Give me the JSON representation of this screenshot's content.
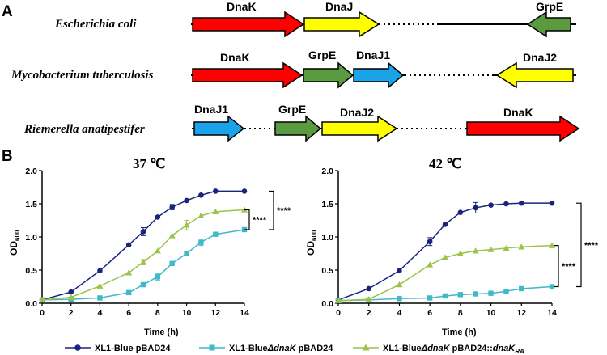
{
  "panel_a": {
    "label": "A",
    "rows": [
      {
        "organism": "Escherichia coli",
        "genes": [
          {
            "name": "DnaK",
            "color": "#ff0000"
          },
          {
            "name": "DnaJ",
            "color": "#ffff00"
          },
          {
            "name": "GrpE",
            "color": "#5b9b3f"
          }
        ]
      },
      {
        "organism": "Mycobacterium tuberculosis",
        "genes": [
          {
            "name": "DnaK",
            "color": "#ff0000"
          },
          {
            "name": "GrpE",
            "color": "#5b9b3f"
          },
          {
            "name": "DnaJ1",
            "color": "#1aa3e8"
          },
          {
            "name": "DnaJ2",
            "color": "#ffff00"
          }
        ]
      },
      {
        "organism": "Riemerella anatipestifer",
        "genes": [
          {
            "name": "DnaJ1",
            "color": "#1aa3e8"
          },
          {
            "name": "GrpE",
            "color": "#5b9b3f"
          },
          {
            "name": "DnaJ2",
            "color": "#ffff00"
          },
          {
            "name": "DnaK",
            "color": "#ff0000"
          }
        ]
      }
    ]
  },
  "panel_b": {
    "label": "B",
    "ylabel_main": "OD",
    "ylabel_sub": "600"
  },
  "chart_data": [
    {
      "type": "line",
      "title": "37 ℃",
      "xlabel": "Time (h)",
      "ylabel": "OD600",
      "xlim": [
        0,
        14
      ],
      "ylim": [
        0,
        2.0
      ],
      "xticks": [
        0,
        2,
        4,
        6,
        8,
        10,
        12,
        14
      ],
      "yticks": [
        0.0,
        0.5,
        1.0,
        1.5,
        2.0
      ],
      "ytick_labels": [
        "0.0",
        "0.5",
        "1.0",
        "1.5",
        "2.0"
      ],
      "x": [
        0,
        2,
        4,
        6,
        7,
        8,
        9,
        10,
        11,
        12,
        14
      ],
      "series": [
        {
          "name": "XL1-Blue pBAD24",
          "color": "#1a237e",
          "marker": "circle",
          "values": [
            0.05,
            0.17,
            0.49,
            0.88,
            1.08,
            1.3,
            1.45,
            1.55,
            1.63,
            1.69,
            1.69
          ],
          "errors": [
            0,
            0,
            0,
            0,
            0.06,
            0,
            0.04,
            0,
            0,
            0,
            0
          ]
        },
        {
          "name": "XL1-BlueΔdnaK pBAD24",
          "color": "#3fb8c8",
          "marker": "square",
          "values": [
            0.05,
            0.06,
            0.08,
            0.16,
            0.28,
            0.4,
            0.6,
            0.75,
            0.92,
            1.04,
            1.11
          ],
          "errors": [
            0,
            0,
            0,
            0,
            0,
            0.05,
            0,
            0,
            0.05,
            0,
            0
          ]
        },
        {
          "name": "XL1-BlueΔdnaK pBAD24::dnaKRA",
          "color": "#9cc24a",
          "marker": "triangle",
          "values": [
            0.05,
            0.09,
            0.26,
            0.46,
            0.62,
            0.79,
            1.02,
            1.18,
            1.32,
            1.38,
            1.41
          ],
          "errors": [
            0,
            0,
            0,
            0,
            0.04,
            0,
            0,
            0.07,
            0,
            0,
            0
          ]
        }
      ],
      "significance": [
        {
          "label": "****",
          "between": [
            "XL1-BlueΔdnaK pBAD24::dnaKRA",
            "XL1-BlueΔdnaK pBAD24"
          ]
        },
        {
          "label": "****",
          "between": [
            "XL1-Blue pBAD24",
            "XL1-BlueΔdnaK pBAD24"
          ]
        }
      ]
    },
    {
      "type": "line",
      "title": "42 ℃",
      "xlabel": "Time (h)",
      "ylabel": "OD600",
      "xlim": [
        0,
        14
      ],
      "ylim": [
        0,
        2.0
      ],
      "xticks": [
        0,
        2,
        4,
        6,
        8,
        10,
        12,
        14
      ],
      "yticks": [
        0.0,
        0.5,
        1.0,
        1.5,
        2.0
      ],
      "ytick_labels": [
        "0.0",
        "0.5",
        "1.0",
        "1.5",
        "2.0"
      ],
      "x": [
        0,
        2,
        4,
        6,
        7,
        8,
        9,
        10,
        11,
        12,
        14
      ],
      "series": [
        {
          "name": "XL1-Blue pBAD24",
          "color": "#1a237e",
          "marker": "circle",
          "values": [
            0.05,
            0.22,
            0.49,
            0.93,
            1.19,
            1.37,
            1.44,
            1.48,
            1.5,
            1.51,
            1.51
          ],
          "errors": [
            0,
            0,
            0,
            0.06,
            0,
            0,
            0.08,
            0,
            0,
            0,
            0
          ]
        },
        {
          "name": "XL1-BlueΔdnaK pBAD24",
          "color": "#3fb8c8",
          "marker": "square",
          "values": [
            0.04,
            0.05,
            0.07,
            0.08,
            0.11,
            0.13,
            0.14,
            0.15,
            0.18,
            0.22,
            0.25
          ],
          "errors": [
            0,
            0,
            0,
            0,
            0,
            0,
            0,
            0,
            0,
            0,
            0
          ]
        },
        {
          "name": "XL1-BlueΔdnaK pBAD24::dnaKRA",
          "color": "#9cc24a",
          "marker": "triangle",
          "values": [
            0.04,
            0.06,
            0.28,
            0.58,
            0.69,
            0.75,
            0.79,
            0.81,
            0.83,
            0.85,
            0.87
          ],
          "errors": [
            0,
            0,
            0,
            0,
            0,
            0,
            0,
            0,
            0,
            0,
            0
          ]
        }
      ],
      "significance": [
        {
          "label": "****",
          "between": [
            "XL1-BlueΔdnaK pBAD24::dnaKRA",
            "XL1-BlueΔdnaK pBAD24"
          ]
        },
        {
          "label": "****",
          "between": [
            "XL1-Blue pBAD24",
            "XL1-BlueΔdnaK pBAD24"
          ]
        }
      ]
    }
  ],
  "legend": [
    {
      "prefix": "XL1-Blue pBAD24",
      "italic": "",
      "rest": "",
      "sub": "",
      "marker": "circle",
      "color": "#1a237e"
    },
    {
      "prefix": "XL1-Blue",
      "italic": "ΔdnaK",
      "rest": " pBAD24",
      "sub": "",
      "marker": "square",
      "color": "#3fb8c8"
    },
    {
      "prefix": "XL1-Blue",
      "italic": "ΔdnaK",
      "rest": " pBAD24::",
      "italic2": "dnaK",
      "sub": "RA",
      "marker": "triangle",
      "color": "#9cc24a"
    }
  ]
}
